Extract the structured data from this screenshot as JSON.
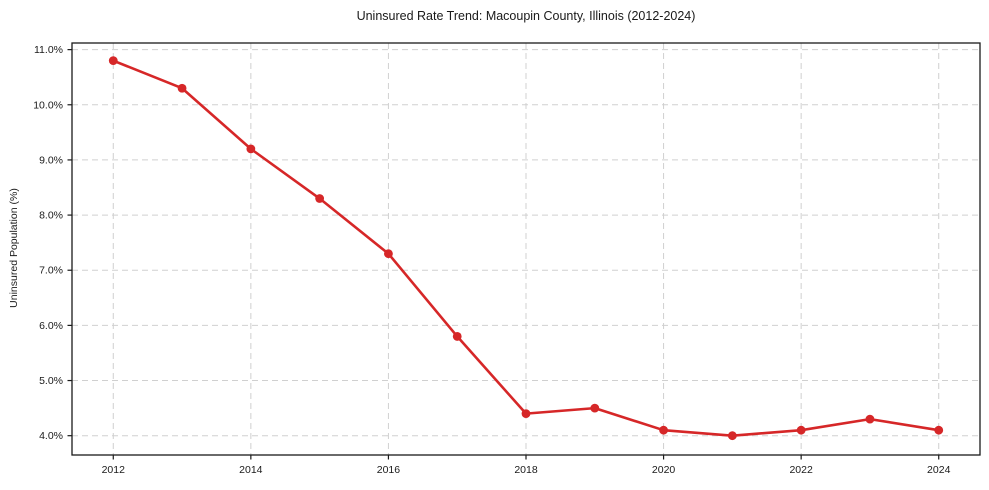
{
  "chart_data": {
    "type": "line",
    "title": "Uninsured Rate Trend: Macoupin County, Illinois (2012-2024)",
    "xlabel": "",
    "ylabel": "Uninsured Population (%)",
    "x": [
      2012,
      2013,
      2014,
      2015,
      2016,
      2017,
      2018,
      2019,
      2020,
      2021,
      2022,
      2023,
      2024
    ],
    "values": [
      10.8,
      10.3,
      9.2,
      8.3,
      7.3,
      5.8,
      4.4,
      4.5,
      4.1,
      4.0,
      4.1,
      4.3,
      4.1
    ],
    "xlim": [
      2011.4,
      2024.6
    ],
    "ylim": [
      3.65,
      11.12
    ],
    "x_ticks": [
      2012,
      2014,
      2016,
      2018,
      2020,
      2022,
      2024
    ],
    "x_tick_labels": [
      "2012",
      "2014",
      "2016",
      "2018",
      "2020",
      "2022",
      "2024"
    ],
    "y_ticks": [
      4,
      5,
      6,
      7,
      8,
      9,
      10,
      11
    ],
    "y_tick_labels": [
      "4.0%",
      "5.0%",
      "6.0%",
      "7.0%",
      "8.0%",
      "9.0%",
      "10.0%",
      "11.0%"
    ],
    "grid": true,
    "legend": "none",
    "style": {
      "line_color": "#d62728",
      "marker": "circle",
      "marker_radius": 4.4,
      "line_width": 2.6,
      "grid_color": "#d0d0d0",
      "grid_dash": "6 4",
      "axis_color": "#1a1a1a",
      "text_color": "#1a1a1a",
      "background": "#ffffff"
    }
  }
}
